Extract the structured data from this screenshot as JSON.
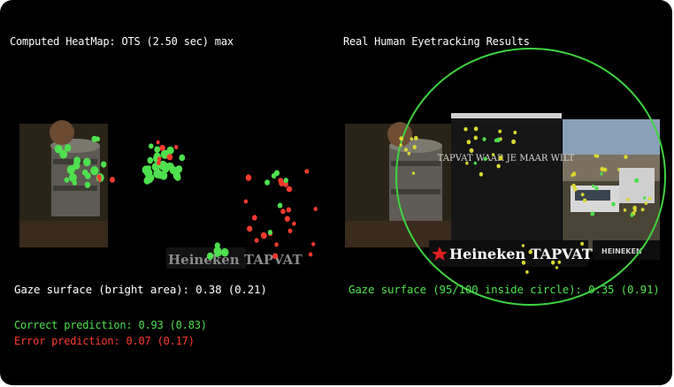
{
  "left_panel": {
    "title": "Computed HeatMap: OTS (2.50 sec) max",
    "gaze_surface": "Gaze surface (bright area): 0.38 (0.21)",
    "correct_prediction": "Correct prediction: 0.93 (0.83)",
    "error_prediction": "Error prediction: 0.07 (0.17)",
    "watermark": "Heineken TAPVAT"
  },
  "right_panel": {
    "title": "Real Human Eyetracking Results",
    "gaze_surface": "Gaze surface (95/100 inside circle): 0.35 (0.91)",
    "brand_logo": "Heineken TAPVAT",
    "shirt_text": "TAPVAT WAAR JE MAAR WILT",
    "small_logo": "HEINEKEN"
  },
  "colors": {
    "correct": "#4ee04e",
    "error": "#ff3b2f",
    "circle": "#3fd43f"
  }
}
